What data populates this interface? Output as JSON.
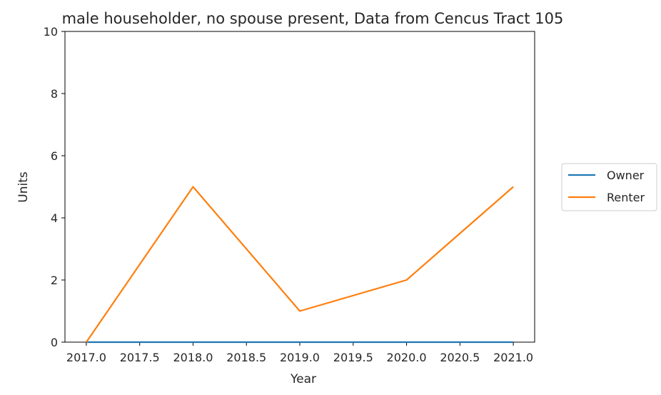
{
  "chart_data": {
    "type": "line",
    "title": "male householder, no spouse present, Data from Cencus Tract 105",
    "xlabel": "Year",
    "ylabel": "Units",
    "x": [
      2017,
      2018,
      2019,
      2020,
      2021
    ],
    "xlim": [
      2016.8,
      2021.2
    ],
    "ylim": [
      0,
      10
    ],
    "xticks": [
      "2017.0",
      "2017.5",
      "2018.0",
      "2018.5",
      "2019.0",
      "2019.5",
      "2020.0",
      "2020.5",
      "2021.0"
    ],
    "xtick_values": [
      2017.0,
      2017.5,
      2018.0,
      2018.5,
      2019.0,
      2019.5,
      2020.0,
      2020.5,
      2021.0
    ],
    "yticks": [
      "0",
      "2",
      "4",
      "6",
      "8",
      "10"
    ],
    "ytick_values": [
      0,
      2,
      4,
      6,
      8,
      10
    ],
    "grid": false,
    "legend_position": "right",
    "series": [
      {
        "name": "Owner",
        "values": [
          0,
          0,
          0,
          0,
          0
        ],
        "color": "#1f77b4"
      },
      {
        "name": "Renter",
        "values": [
          0,
          5,
          1,
          2,
          5
        ],
        "color": "#ff7f0e"
      }
    ]
  }
}
